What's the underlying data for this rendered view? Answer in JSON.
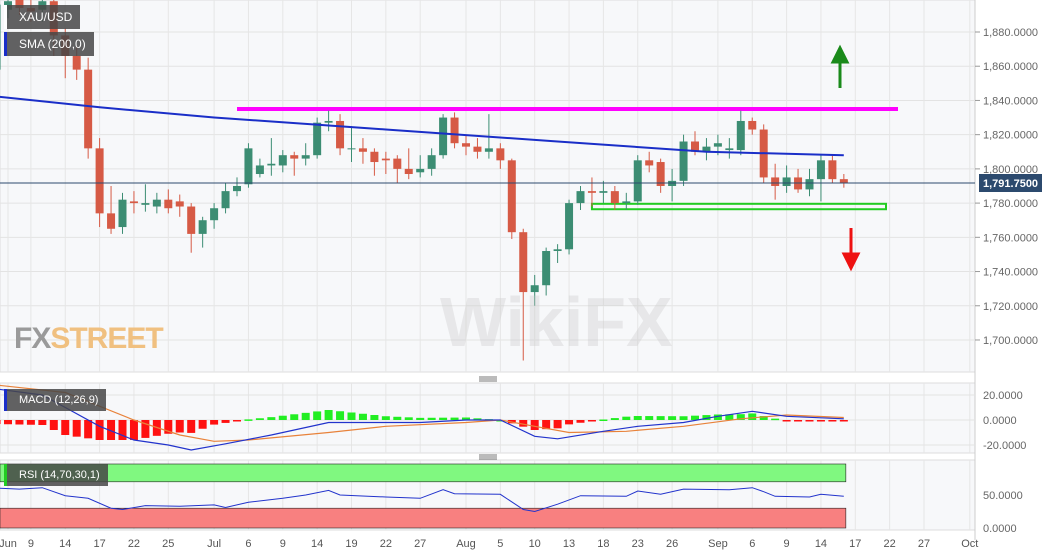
{
  "chart_data": {
    "type": "candlestick",
    "symbol": "XAU/USD",
    "indicator_label": "SMA (200,0)",
    "last_price_label": "1,791.7500",
    "last_price": 1791.75,
    "price_ylim": [
      1685,
      1898
    ],
    "price_ticks": [
      "1,880.0000",
      "1,860.0000",
      "1,840.0000",
      "1,820.0000",
      "1,800.0000",
      "1,780.0000",
      "1,760.0000",
      "1,740.0000",
      "1,720.0000",
      "1,700.0000"
    ],
    "price_tick_values": [
      1880,
      1860,
      1840,
      1820,
      1800,
      1780,
      1760,
      1740,
      1720,
      1700
    ],
    "x_ticks": [
      {
        "date": "2021-06-07",
        "label": "Jun"
      },
      {
        "date": "2021-06-09",
        "label": "9"
      },
      {
        "date": "2021-06-14",
        "label": "14"
      },
      {
        "date": "2021-06-17",
        "label": "17"
      },
      {
        "date": "2021-06-22",
        "label": "22"
      },
      {
        "date": "2021-06-25",
        "label": "25"
      },
      {
        "date": "2021-07-01",
        "label": "Jul"
      },
      {
        "date": "2021-07-06",
        "label": "6"
      },
      {
        "date": "2021-07-09",
        "label": "9"
      },
      {
        "date": "2021-07-14",
        "label": "14"
      },
      {
        "date": "2021-07-19",
        "label": "19"
      },
      {
        "date": "2021-07-22",
        "label": "22"
      },
      {
        "date": "2021-07-27",
        "label": "27"
      },
      {
        "date": "2021-08-02",
        "label": "Aug"
      },
      {
        "date": "2021-08-05",
        "label": "5"
      },
      {
        "date": "2021-08-10",
        "label": "10"
      },
      {
        "date": "2021-08-13",
        "label": "13"
      },
      {
        "date": "2021-08-18",
        "label": "18"
      },
      {
        "date": "2021-08-23",
        "label": "23"
      },
      {
        "date": "2021-08-26",
        "label": "26"
      },
      {
        "date": "2021-09-01",
        "label": "Sep"
      },
      {
        "date": "2021-09-06",
        "label": "6"
      },
      {
        "date": "2021-09-09",
        "label": "9"
      },
      {
        "date": "2021-09-14",
        "label": "14"
      },
      {
        "date": "2021-09-17",
        "label": "17"
      },
      {
        "date": "2021-09-22",
        "label": "22"
      },
      {
        "date": "2021-09-27",
        "label": "27"
      },
      {
        "date": "2021-10-01",
        "label": "Oct"
      }
    ],
    "candles_columns": [
      "date",
      "open",
      "high",
      "low",
      "close"
    ],
    "candles": [
      [
        "2021-06-03",
        1872,
        1905,
        1866,
        1900
      ],
      [
        "2021-06-04",
        1858,
        1902,
        1852,
        1896
      ],
      [
        "2021-06-07",
        1893,
        1902,
        1888,
        1898
      ],
      [
        "2021-06-08",
        1899,
        1903,
        1890,
        1894
      ],
      [
        "2021-06-09",
        1894,
        1900,
        1886,
        1892
      ],
      [
        "2021-06-10",
        1893,
        1903,
        1886,
        1898
      ],
      [
        "2021-06-11",
        1898,
        1903,
        1866,
        1878
      ],
      [
        "2021-06-14",
        1878,
        1882,
        1853,
        1866
      ],
      [
        "2021-06-15",
        1866,
        1872,
        1852,
        1858
      ],
      [
        "2021-06-16",
        1858,
        1865,
        1806,
        1812
      ],
      [
        "2021-06-17",
        1812,
        1818,
        1766,
        1774
      ],
      [
        "2021-06-18",
        1774,
        1790,
        1762,
        1765
      ],
      [
        "2021-06-21",
        1766,
        1786,
        1762,
        1782
      ],
      [
        "2021-06-22",
        1781,
        1787,
        1774,
        1780
      ],
      [
        "2021-06-23",
        1779,
        1791,
        1775,
        1780
      ],
      [
        "2021-06-24",
        1778,
        1786,
        1774,
        1782
      ],
      [
        "2021-06-25",
        1782,
        1788,
        1774,
        1777
      ],
      [
        "2021-06-28",
        1781,
        1785,
        1772,
        1778
      ],
      [
        "2021-06-29",
        1778,
        1780,
        1751,
        1762
      ],
      [
        "2021-06-30",
        1762,
        1772,
        1754,
        1770
      ],
      [
        "2021-07-01",
        1770,
        1780,
        1765,
        1777
      ],
      [
        "2021-07-02",
        1777,
        1792,
        1774,
        1787
      ],
      [
        "2021-07-05",
        1787,
        1795,
        1784,
        1790
      ],
      [
        "2021-07-06",
        1791,
        1815,
        1789,
        1812
      ],
      [
        "2021-07-07",
        1797,
        1806,
        1795,
        1802
      ],
      [
        "2021-07-08",
        1802,
        1818,
        1796,
        1803
      ],
      [
        "2021-07-09",
        1802,
        1811,
        1798,
        1808
      ],
      [
        "2021-07-12",
        1808,
        1810,
        1796,
        1806
      ],
      [
        "2021-07-13",
        1806,
        1815,
        1802,
        1808
      ],
      [
        "2021-07-14",
        1808,
        1830,
        1806,
        1827
      ],
      [
        "2021-07-15",
        1827,
        1834,
        1822,
        1828
      ],
      [
        "2021-07-16",
        1828,
        1832,
        1808,
        1812
      ],
      [
        "2021-07-19",
        1812,
        1825,
        1804,
        1812
      ],
      [
        "2021-07-20",
        1812,
        1818,
        1803,
        1810
      ],
      [
        "2021-07-21",
        1810,
        1812,
        1796,
        1804
      ],
      [
        "2021-07-22",
        1806,
        1810,
        1797,
        1805
      ],
      [
        "2021-07-23",
        1806,
        1808,
        1792,
        1800
      ],
      [
        "2021-07-26",
        1800,
        1812,
        1794,
        1797
      ],
      [
        "2021-07-27",
        1798,
        1808,
        1795,
        1800
      ],
      [
        "2021-07-28",
        1800,
        1812,
        1796,
        1808
      ],
      [
        "2021-07-29",
        1808,
        1832,
        1806,
        1830
      ],
      [
        "2021-07-30",
        1830,
        1833,
        1812,
        1815
      ],
      [
        "2021-08-02",
        1815,
        1820,
        1808,
        1813
      ],
      [
        "2021-08-03",
        1813,
        1818,
        1806,
        1810
      ],
      [
        "2021-08-04",
        1810,
        1832,
        1806,
        1812
      ],
      [
        "2021-08-05",
        1812,
        1815,
        1800,
        1805
      ],
      [
        "2021-08-06",
        1805,
        1806,
        1759,
        1763
      ],
      [
        "2021-08-09",
        1763,
        1765,
        1688,
        1728
      ],
      [
        "2021-08-10",
        1728,
        1738,
        1720,
        1732
      ],
      [
        "2021-08-11",
        1732,
        1754,
        1726,
        1752
      ],
      [
        "2021-08-12",
        1752,
        1756,
        1745,
        1753
      ],
      [
        "2021-08-13",
        1753,
        1782,
        1750,
        1780
      ],
      [
        "2021-08-16",
        1780,
        1790,
        1776,
        1787
      ],
      [
        "2021-08-17",
        1787,
        1795,
        1778,
        1786
      ],
      [
        "2021-08-18",
        1786,
        1793,
        1780,
        1787
      ],
      [
        "2021-08-19",
        1787,
        1790,
        1776,
        1780
      ],
      [
        "2021-08-20",
        1780,
        1786,
        1776,
        1781
      ],
      [
        "2021-08-23",
        1781,
        1808,
        1779,
        1805
      ],
      [
        "2021-08-24",
        1805,
        1810,
        1798,
        1802
      ],
      [
        "2021-08-25",
        1804,
        1806,
        1786,
        1790
      ],
      [
        "2021-08-26",
        1790,
        1800,
        1781,
        1793
      ],
      [
        "2021-08-27",
        1793,
        1820,
        1790,
        1816
      ],
      [
        "2021-08-30",
        1816,
        1822,
        1808,
        1810
      ],
      [
        "2021-08-31",
        1810,
        1818,
        1805,
        1813
      ],
      [
        "2021-09-01",
        1813,
        1820,
        1808,
        1815
      ],
      [
        "2021-09-02",
        1811,
        1818,
        1806,
        1812
      ],
      [
        "2021-09-03",
        1811,
        1834,
        1808,
        1828
      ],
      [
        "2021-09-06",
        1828,
        1830,
        1820,
        1823
      ],
      [
        "2021-09-07",
        1823,
        1826,
        1792,
        1795
      ],
      [
        "2021-09-08",
        1795,
        1803,
        1782,
        1790
      ],
      [
        "2021-09-09",
        1790,
        1802,
        1786,
        1795
      ],
      [
        "2021-09-10",
        1795,
        1800,
        1786,
        1788
      ],
      [
        "2021-09-13",
        1788,
        1800,
        1784,
        1794
      ],
      [
        "2021-09-14",
        1794,
        1808,
        1781,
        1805
      ],
      [
        "2021-09-15",
        1805,
        1808,
        1792,
        1794
      ],
      [
        "2021-09-16",
        1794,
        1797,
        1789,
        1792
      ]
    ],
    "sma200": [
      [
        "2021-06-03",
        1843
      ],
      [
        "2021-06-17",
        1836
      ],
      [
        "2021-07-01",
        1830
      ],
      [
        "2021-07-22",
        1823
      ],
      [
        "2021-08-12",
        1816
      ],
      [
        "2021-08-31",
        1810
      ],
      [
        "2021-09-16",
        1808
      ]
    ],
    "resistance_level": 1835,
    "resistance_from": "2021-07-05",
    "support_zone": [
      1777,
      1779
    ],
    "support_from": "2021-08-17",
    "colors": {
      "up": "#3c8d73",
      "down": "#d65a45",
      "sma": "#1a2ec8",
      "resistance": "#ff00ff",
      "support": "#22cc22",
      "arrow_up": "#1a8a1a",
      "arrow_down": "#ee1111",
      "price_tag": "#2c4a6e"
    },
    "macd": {
      "label": "MACD (12,26,9)",
      "ticks": [
        "20.0000",
        "0.0000",
        "-20.0000"
      ],
      "tick_values": [
        20,
        0,
        -20
      ],
      "ylim": [
        -27,
        30
      ],
      "macd_line": [
        [
          "2021-06-03",
          26
        ],
        [
          "2021-06-10",
          20
        ],
        [
          "2021-06-14",
          10
        ],
        [
          "2021-06-17",
          -5
        ],
        [
          "2021-06-22",
          -16
        ],
        [
          "2021-06-25",
          -20
        ],
        [
          "2021-06-29",
          -24
        ],
        [
          "2021-07-02",
          -19
        ],
        [
          "2021-07-08",
          -12
        ],
        [
          "2021-07-13",
          -6
        ],
        [
          "2021-07-15",
          -2
        ],
        [
          "2021-07-27",
          -2
        ],
        [
          "2021-08-02",
          0
        ],
        [
          "2021-08-05",
          0
        ],
        [
          "2021-08-10",
          -13
        ],
        [
          "2021-08-12",
          -15
        ],
        [
          "2021-08-18",
          -9
        ],
        [
          "2021-08-23",
          -5
        ],
        [
          "2021-08-27",
          -2
        ],
        [
          "2021-09-01",
          3
        ],
        [
          "2021-09-06",
          7
        ],
        [
          "2021-09-09",
          3
        ],
        [
          "2021-09-16",
          1
        ]
      ],
      "signal_line": [
        [
          "2021-06-03",
          29
        ],
        [
          "2021-06-14",
          22
        ],
        [
          "2021-06-22",
          0
        ],
        [
          "2021-06-28",
          -12
        ],
        [
          "2021-07-01",
          -17
        ],
        [
          "2021-07-06",
          -16
        ],
        [
          "2021-07-15",
          -10
        ],
        [
          "2021-07-22",
          -5
        ],
        [
          "2021-08-02",
          -2
        ],
        [
          "2021-08-05",
          0
        ],
        [
          "2021-08-10",
          -5
        ],
        [
          "2021-08-13",
          -10
        ],
        [
          "2021-08-20",
          -9
        ],
        [
          "2021-08-27",
          -5
        ],
        [
          "2021-09-03",
          1
        ],
        [
          "2021-09-09",
          4
        ],
        [
          "2021-09-16",
          2
        ]
      ]
    },
    "rsi": {
      "label": "RSI (14,70,30,1)",
      "ticks": [
        "50.0000",
        "0.0000"
      ],
      "tick_values": [
        50,
        0
      ],
      "overbought": 70,
      "oversold": 30,
      "line": [
        [
          "2021-06-03",
          61
        ],
        [
          "2021-06-08",
          59
        ],
        [
          "2021-06-10",
          61
        ],
        [
          "2021-06-14",
          49
        ],
        [
          "2021-06-16",
          45
        ],
        [
          "2021-06-18",
          30
        ],
        [
          "2021-06-21",
          28
        ],
        [
          "2021-06-23",
          34
        ],
        [
          "2021-06-28",
          33
        ],
        [
          "2021-07-01",
          35
        ],
        [
          "2021-07-02",
          31
        ],
        [
          "2021-07-06",
          39
        ],
        [
          "2021-07-09",
          45
        ],
        [
          "2021-07-13",
          50
        ],
        [
          "2021-07-15",
          57
        ],
        [
          "2021-07-16",
          50
        ],
        [
          "2021-07-22",
          47
        ],
        [
          "2021-07-27",
          45
        ],
        [
          "2021-07-29",
          58
        ],
        [
          "2021-07-30",
          52
        ],
        [
          "2021-08-05",
          51
        ],
        [
          "2021-08-09",
          28
        ],
        [
          "2021-08-10",
          25
        ],
        [
          "2021-08-12",
          36
        ],
        [
          "2021-08-16",
          49
        ],
        [
          "2021-08-20",
          48
        ],
        [
          "2021-08-23",
          56
        ],
        [
          "2021-08-25",
          51
        ],
        [
          "2021-08-27",
          59
        ],
        [
          "2021-09-02",
          58
        ],
        [
          "2021-09-06",
          61
        ],
        [
          "2021-09-07",
          55
        ],
        [
          "2021-09-08",
          48
        ],
        [
          "2021-09-13",
          47
        ],
        [
          "2021-09-14",
          51
        ],
        [
          "2021-09-16",
          48
        ]
      ]
    }
  },
  "watermarks": {
    "fxstreet_fx": "FX",
    "fxstreet_street": "STREET",
    "wikifx": "WikiFX"
  }
}
